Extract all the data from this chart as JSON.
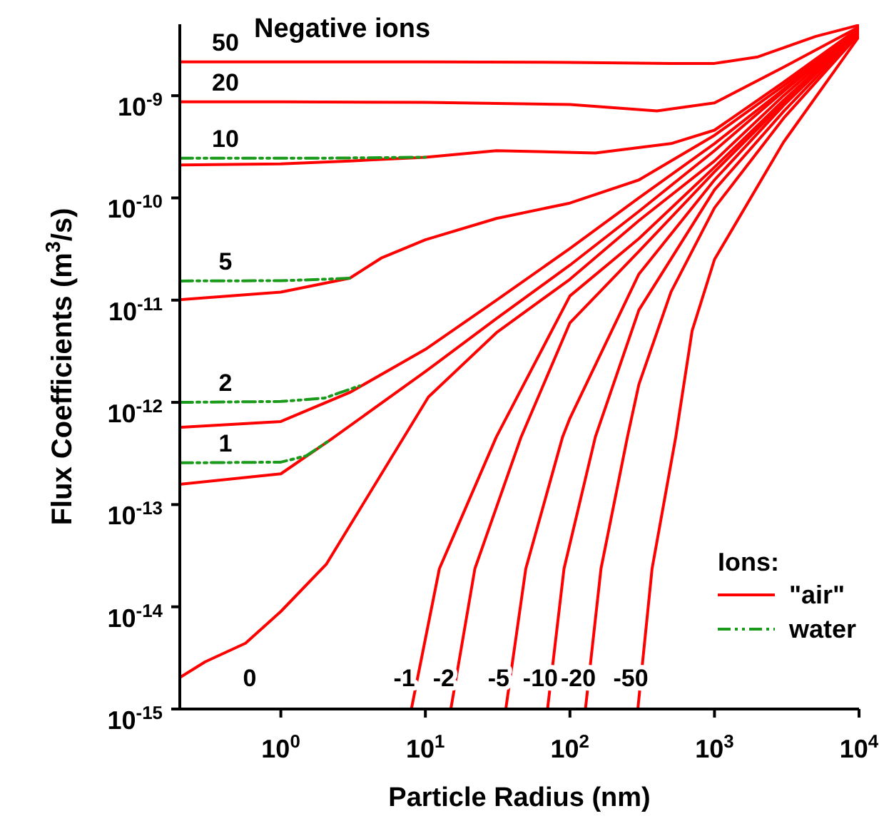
{
  "chart_data": {
    "type": "line",
    "title": "Negative ions",
    "xlabel": "Particle Radius (nm)",
    "ylabel": "Flux Coefficients (m$^{3}$/s)",
    "legend_title": "Ions:",
    "legend": "bottom right",
    "log": "xy",
    "marker": "none",
    "xlim": [
      0.2,
      10000
    ],
    "ylim": [
      1e-15,
      5e-09
    ],
    "xticks": [
      {
        "value": 1,
        "label": "10$^{0}$"
      },
      {
        "value": 10,
        "label": "10$^{1}$"
      },
      {
        "value": 100,
        "label": "10$^{2}$"
      },
      {
        "value": 1000,
        "label": "10$^{3}$"
      },
      {
        "value": 10000,
        "label": "10$^{4}$"
      }
    ],
    "yticks": [
      {
        "value": 1e-15,
        "label": "10$^{-15}$"
      },
      {
        "value": 1e-14,
        "label": "10$^{-14}$"
      },
      {
        "value": 1e-13,
        "label": "10$^{-13}$"
      },
      {
        "value": 1e-12,
        "label": "10$^{-12}$"
      },
      {
        "value": 1e-11,
        "label": "10$^{-11}$"
      },
      {
        "value": 1e-10,
        "label": "10$^{-10}$"
      },
      {
        "value": 1e-09,
        "label": "10$^{-9}$"
      }
    ],
    "series": [
      {
        "name": "\"air\"",
        "color": "#ff0000",
        "line_style": "solid",
        "x": [
          0.2,
          1,
          10,
          100,
          500,
          1000,
          2000,
          5000,
          10000
        ],
        "values": [
          2.14e-09,
          2.14e-09,
          2.14e-09,
          2.12e-09,
          2.07e-09,
          2.07e-09,
          2.4e-09,
          3.8e-09,
          4.9e-09
        ]
      },
      {
        "color": "#ff0000",
        "line_style": "solid",
        "x": [
          0.2,
          1,
          10,
          100,
          400,
          1000,
          3000,
          10000
        ],
        "values": [
          8.7e-10,
          8.7e-10,
          8.6e-10,
          8.2e-10,
          7.1e-10,
          8.5e-10,
          1.9e-09,
          4.7e-09
        ]
      },
      {
        "color": "#ff0000",
        "line_style": "solid",
        "x": [
          0.2,
          1,
          3,
          10,
          31,
          150,
          500,
          1000,
          3000,
          10000
        ],
        "values": [
          2.1e-10,
          2.15e-10,
          2.3e-10,
          2.5e-10,
          2.9e-10,
          2.75e-10,
          3.4e-10,
          4.6e-10,
          1.35e-09,
          4.6e-09
        ]
      },
      {
        "color": "#ff0000",
        "line_style": "solid",
        "x": [
          0.2,
          1,
          3,
          5,
          10,
          31,
          100,
          300,
          1000,
          3000,
          10000
        ],
        "values": [
          1.01e-11,
          1.2e-11,
          1.64e-11,
          2.6e-11,
          3.9e-11,
          6.3e-11,
          8.9e-11,
          1.5e-10,
          4.1e-10,
          1.25e-09,
          4.5e-09
        ]
      },
      {
        "color": "#ff0000",
        "line_style": "solid",
        "x": [
          0.2,
          1,
          3,
          10,
          31,
          100,
          300,
          1000,
          3000,
          10000
        ],
        "values": [
          5.7e-13,
          6.5e-13,
          1.25e-12,
          3.3e-12,
          1e-11,
          3.2e-11,
          1e-10,
          3.4e-10,
          1.15e-09,
          4.5e-09
        ]
      },
      {
        "color": "#ff0000",
        "line_style": "solid",
        "x": [
          0.2,
          1,
          2.2,
          10,
          31,
          100,
          300,
          1000,
          3000,
          10000
        ],
        "values": [
          1.58e-13,
          2e-13,
          4.3e-13,
          2e-12,
          6.6e-12,
          2.2e-11,
          7.4e-11,
          2.9e-10,
          1.1e-09,
          4.5e-09
        ]
      },
      {
        "color": "#ff0000",
        "line_style": "solid",
        "x": [
          0.2,
          0.3,
          0.57,
          1,
          2.06,
          10.5,
          31,
          100,
          300,
          1000,
          3000,
          10000
        ],
        "values": [
          2.03e-15,
          2.9e-15,
          4.4e-15,
          9e-15,
          2.6e-14,
          1.13e-12,
          4.8e-12,
          1.6e-11,
          6e-11,
          2.3e-10,
          1e-09,
          4.4e-09
        ]
      },
      {
        "color": "#ff0000",
        "line_style": "solid",
        "x": [
          8,
          12.5,
          31,
          100,
          300,
          1000,
          3000,
          10000
        ],
        "values": [
          1e-15,
          2.36e-14,
          4.6e-13,
          1.1e-11,
          4e-11,
          2e-10,
          9e-10,
          4.3e-09
        ]
      },
      {
        "color": "#ff0000",
        "line_style": "solid",
        "x": [
          15,
          22,
          46,
          100,
          300,
          1000,
          3000,
          10000
        ],
        "values": [
          1e-15,
          2.36e-14,
          4.6e-13,
          6e-12,
          3e-11,
          1.8e-10,
          8.5e-10,
          4.2e-09
        ]
      },
      {
        "color": "#ff0000",
        "line_style": "solid",
        "x": [
          36,
          49.5,
          89,
          100,
          300,
          1000,
          3000,
          10000
        ],
        "values": [
          1e-15,
          2.36e-14,
          4.6e-13,
          7e-13,
          1.8e-11,
          1.5e-10,
          8e-10,
          4.2e-09
        ]
      },
      {
        "color": "#ff0000",
        "line_style": "solid",
        "x": [
          70,
          91,
          150,
          300,
          1000,
          3000,
          10000
        ],
        "values": [
          1e-15,
          2.36e-14,
          4.6e-13,
          8e-12,
          1.2e-10,
          7e-10,
          4.1e-09
        ]
      },
      {
        "color": "#ff0000",
        "line_style": "solid",
        "x": [
          128,
          164,
          250,
          300,
          500,
          1000,
          3000,
          10000
        ],
        "values": [
          1e-15,
          2.36e-14,
          4.6e-13,
          1.5e-12,
          1.2e-11,
          8e-11,
          6e-10,
          4e-09
        ]
      },
      {
        "color": "#ff0000",
        "line_style": "solid",
        "x": [
          295,
          370,
          540,
          700,
          1000,
          3000,
          10000
        ],
        "values": [
          1e-15,
          2.36e-14,
          4.6e-13,
          5e-12,
          2.5e-11,
          3.5e-10,
          3.8e-09
        ]
      },
      {
        "name": "water",
        "color": "#1a9a1a",
        "line_style": "dashed",
        "x": [
          0.2,
          1,
          2,
          10
        ],
        "values": [
          2.45e-10,
          2.45e-10,
          2.45e-10,
          2.5e-10
        ]
      },
      {
        "color": "#1a9a1a",
        "line_style": "dashed",
        "x": [
          0.2,
          1,
          2,
          3
        ],
        "values": [
          1.54e-11,
          1.55e-11,
          1.6e-11,
          1.64e-11
        ]
      },
      {
        "color": "#1a9a1a",
        "line_style": "dashed",
        "x": [
          0.2,
          1,
          2,
          3.5
        ],
        "values": [
          1e-12,
          1.02e-12,
          1.1e-12,
          1.45e-12
        ]
      },
      {
        "color": "#1a9a1a",
        "line_style": "dashed",
        "x": [
          0.2,
          1,
          1.5,
          2.2
        ],
        "values": [
          2.56e-13,
          2.6e-13,
          3e-13,
          4.3e-13
        ]
      }
    ],
    "annotations": [
      "50",
      "20",
      "10",
      "5",
      "2",
      "1",
      "0",
      "-1",
      "-2",
      "-5",
      "-10",
      "-20",
      "-50"
    ]
  }
}
